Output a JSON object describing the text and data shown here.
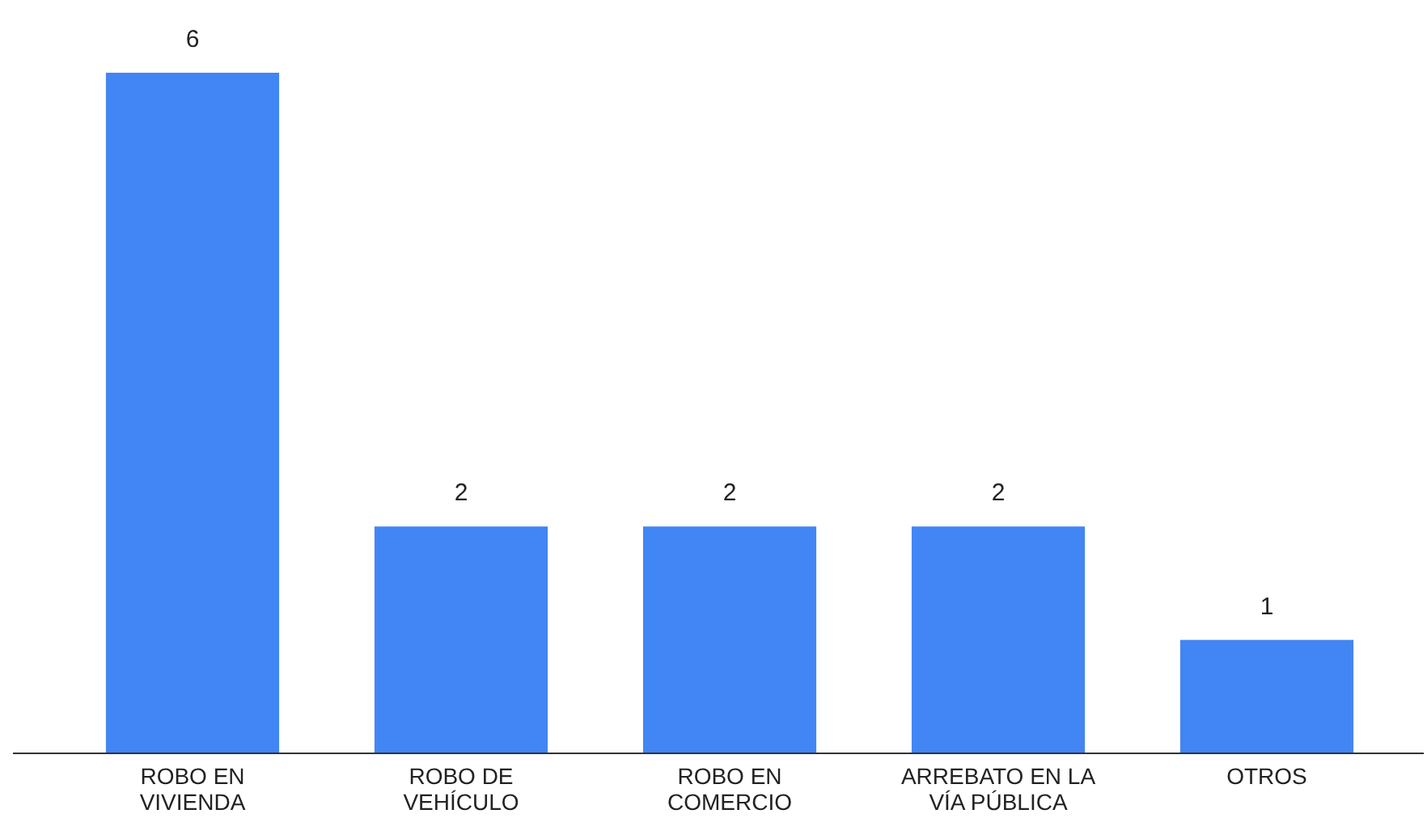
{
  "chart_data": {
    "type": "bar",
    "categories": [
      "ROBO EN VIVIENDA",
      "ROBO DE VEHÍCULO",
      "ROBO EN COMERCIO",
      "ARREBATO EN LA VÍA PÚBLICA",
      "OTROS"
    ],
    "values": [
      6,
      2,
      2,
      2,
      1
    ],
    "color": "#4285f4",
    "data_labels": true
  }
}
